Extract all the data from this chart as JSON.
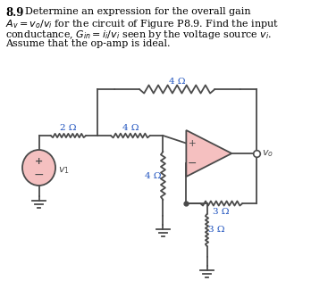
{
  "background": "#ffffff",
  "opamp_color": "#f5c0c0",
  "vsource_color": "#f5c0c0",
  "line_color": "#4a4a4a",
  "text_color": "#000000",
  "blue_color": "#1a4fbd",
  "res_labels": [
    "2 Ω",
    "4 Ω",
    "4 Ω",
    "4 Ω",
    "3 Ω",
    "3 Ω"
  ],
  "figsize": [
    3.67,
    3.24
  ],
  "dpi": 100
}
